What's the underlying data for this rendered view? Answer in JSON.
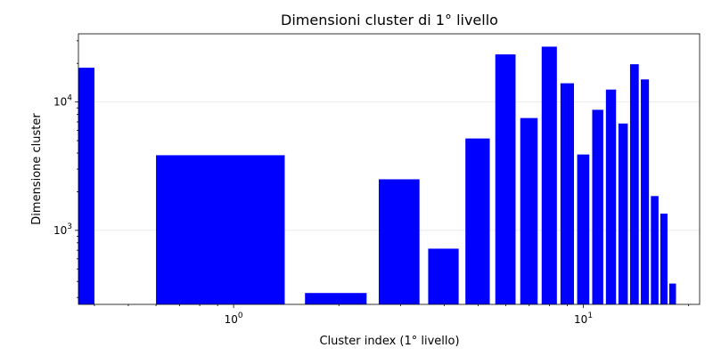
{
  "chart_data": {
    "type": "bar",
    "title": "Dimensioni cluster di 1° livello",
    "xlabel": "Cluster index (1° livello)",
    "ylabel": "Dimensione cluster",
    "x_scale": "log",
    "y_scale": "log",
    "xlim": [
      0.36,
      21.5
    ],
    "ylim": [
      265,
      34000
    ],
    "grid": "y-major",
    "bar_color": "#0000ff",
    "x_ticks": [
      {
        "value": 1,
        "base": "10",
        "exp": "0"
      },
      {
        "value": 10,
        "base": "10",
        "exp": "1"
      }
    ],
    "y_ticks": [
      {
        "value": 1000,
        "base": "10",
        "exp": "3"
      },
      {
        "value": 10000,
        "base": "10",
        "exp": "4"
      }
    ],
    "bars": [
      {
        "x": 0,
        "value": 18500
      },
      {
        "x": 1,
        "value": 3850
      },
      {
        "x": 2,
        "value": 325
      },
      {
        "x": 3,
        "value": 2500
      },
      {
        "x": 4,
        "value": 720
      },
      {
        "x": 5,
        "value": 5200
      },
      {
        "x": 6,
        "value": 23500
      },
      {
        "x": 7,
        "value": 7500
      },
      {
        "x": 8,
        "value": 27000
      },
      {
        "x": 9,
        "value": 14000
      },
      {
        "x": 10,
        "value": 3900
      },
      {
        "x": 11,
        "value": 8700
      },
      {
        "x": 12,
        "value": 12500
      },
      {
        "x": 13,
        "value": 6800
      },
      {
        "x": 14,
        "value": 19700
      },
      {
        "x": 15,
        "value": 15000
      },
      {
        "x": 16,
        "value": 1850
      },
      {
        "x": 17,
        "value": 1350
      },
      {
        "x": 18,
        "value": 385
      }
    ]
  }
}
